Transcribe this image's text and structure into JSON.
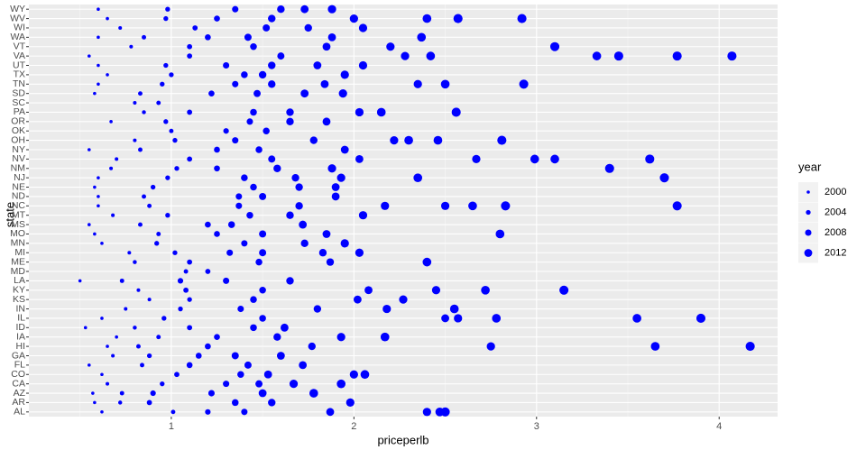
{
  "chart_data": {
    "type": "scatter",
    "x_label": "priceperlb",
    "y_label": "state",
    "categories": [
      "AL",
      "AR",
      "AZ",
      "CA",
      "CO",
      "FL",
      "GA",
      "HI",
      "IA",
      "ID",
      "IL",
      "IN",
      "KS",
      "KY",
      "LA",
      "MD",
      "ME",
      "MI",
      "MN",
      "MO",
      "MS",
      "MT",
      "NC",
      "ND",
      "NE",
      "NJ",
      "NM",
      "NV",
      "NY",
      "OH",
      "OK",
      "OR",
      "PA",
      "SC",
      "SD",
      "TN",
      "TX",
      "UT",
      "VA",
      "VT",
      "WA",
      "WI",
      "WV",
      "WY"
    ],
    "points": [
      [
        [
          0.62,
          2000
        ],
        [
          1.01,
          2003
        ],
        [
          1.2,
          2006
        ],
        [
          1.4,
          2008
        ],
        [
          1.87,
          2012
        ],
        [
          2.4,
          2013
        ],
        [
          2.47,
          2014
        ],
        [
          2.5,
          2015
        ]
      ],
      [
        [
          0.58,
          2000
        ],
        [
          0.72,
          2002
        ],
        [
          0.88,
          2005
        ],
        [
          1.35,
          2009
        ],
        [
          1.55,
          2011
        ],
        [
          1.98,
          2013
        ]
      ],
      [
        [
          0.57,
          2000
        ],
        [
          0.73,
          2003
        ],
        [
          0.9,
          2006
        ],
        [
          1.22,
          2008
        ],
        [
          1.5,
          2012
        ],
        [
          1.78,
          2014
        ]
      ],
      [
        [
          0.65,
          2001
        ],
        [
          0.95,
          2004
        ],
        [
          1.3,
          2008
        ],
        [
          1.48,
          2010
        ],
        [
          1.67,
          2013
        ],
        [
          1.93,
          2014
        ]
      ],
      [
        [
          0.62,
          2000
        ],
        [
          1.03,
          2005
        ],
        [
          1.38,
          2009
        ],
        [
          1.53,
          2012
        ],
        [
          2.0,
          2013
        ],
        [
          2.06,
          2014
        ]
      ],
      [
        [
          0.55,
          2000
        ],
        [
          0.84,
          2003
        ],
        [
          1.1,
          2007
        ],
        [
          1.42,
          2010
        ],
        [
          1.72,
          2012
        ]
      ],
      [
        [
          0.68,
          2001
        ],
        [
          0.88,
          2004
        ],
        [
          1.15,
          2007
        ],
        [
          1.35,
          2010
        ],
        [
          1.6,
          2012
        ]
      ],
      [
        [
          0.65,
          2000
        ],
        [
          0.82,
          2003
        ],
        [
          1.2,
          2007
        ],
        [
          1.77,
          2011
        ],
        [
          2.75,
          2013
        ],
        [
          3.65,
          2014
        ],
        [
          4.17,
          2015
        ]
      ],
      [
        [
          0.7,
          2000
        ],
        [
          0.93,
          2003
        ],
        [
          1.25,
          2007
        ],
        [
          1.58,
          2011
        ],
        [
          1.93,
          2013
        ],
        [
          2.17,
          2014
        ]
      ],
      [
        [
          0.53,
          2000
        ],
        [
          0.8,
          2002
        ],
        [
          1.1,
          2005
        ],
        [
          1.45,
          2009
        ],
        [
          1.62,
          2012
        ]
      ],
      [
        [
          0.62,
          2000
        ],
        [
          0.96,
          2004
        ],
        [
          1.5,
          2009
        ],
        [
          2.5,
          2012
        ],
        [
          2.57,
          2013
        ],
        [
          2.78,
          2014
        ],
        [
          3.55,
          2014
        ],
        [
          3.9,
          2015
        ]
      ],
      [
        [
          0.75,
          2001
        ],
        [
          1.05,
          2004
        ],
        [
          1.38,
          2008
        ],
        [
          1.8,
          2011
        ],
        [
          2.18,
          2013
        ],
        [
          2.55,
          2014
        ]
      ],
      [
        [
          0.88,
          2001
        ],
        [
          1.1,
          2004
        ],
        [
          1.45,
          2009
        ],
        [
          2.02,
          2012
        ],
        [
          2.27,
          2013
        ]
      ],
      [
        [
          0.82,
          2001
        ],
        [
          1.08,
          2005
        ],
        [
          1.5,
          2009
        ],
        [
          2.08,
          2012
        ],
        [
          2.45,
          2013
        ],
        [
          2.72,
          2014
        ],
        [
          3.15,
          2015
        ]
      ],
      [
        [
          0.5,
          2000
        ],
        [
          0.73,
          2003
        ],
        [
          1.05,
          2006
        ],
        [
          1.3,
          2008
        ],
        [
          1.65,
          2011
        ]
      ],
      [
        [
          1.08,
          2003
        ],
        [
          1.2,
          2005
        ]
      ],
      [
        [
          0.8,
          2002
        ],
        [
          1.1,
          2005
        ],
        [
          1.48,
          2009
        ],
        [
          1.87,
          2011
        ],
        [
          2.4,
          2014
        ]
      ],
      [
        [
          0.77,
          2001
        ],
        [
          1.02,
          2004
        ],
        [
          1.32,
          2008
        ],
        [
          1.5,
          2010
        ],
        [
          1.83,
          2011
        ],
        [
          2.03,
          2013
        ]
      ],
      [
        [
          0.62,
          2000
        ],
        [
          0.92,
          2004
        ],
        [
          1.4,
          2008
        ],
        [
          1.73,
          2011
        ],
        [
          1.95,
          2013
        ]
      ],
      [
        [
          0.58,
          2000
        ],
        [
          0.93,
          2003
        ],
        [
          1.25,
          2007
        ],
        [
          1.5,
          2010
        ],
        [
          1.85,
          2012
        ],
        [
          2.8,
          2014
        ]
      ],
      [
        [
          0.55,
          2000
        ],
        [
          0.83,
          2003
        ],
        [
          1.2,
          2007
        ],
        [
          1.33,
          2009
        ],
        [
          1.72,
          2012
        ]
      ],
      [
        [
          0.68,
          2001
        ],
        [
          0.98,
          2004
        ],
        [
          1.43,
          2009
        ],
        [
          1.65,
          2011
        ],
        [
          2.05,
          2013
        ]
      ],
      [
        [
          0.6,
          2000
        ],
        [
          0.88,
          2003
        ],
        [
          1.37,
          2008
        ],
        [
          1.7,
          2011
        ],
        [
          2.17,
          2013
        ],
        [
          2.5,
          2013
        ],
        [
          2.65,
          2014
        ],
        [
          2.83,
          2015
        ],
        [
          3.77,
          2015
        ]
      ],
      [
        [
          0.6,
          2000
        ],
        [
          0.85,
          2003
        ],
        [
          1.37,
          2008
        ],
        [
          1.5,
          2010
        ],
        [
          1.9,
          2012
        ]
      ],
      [
        [
          0.58,
          2000
        ],
        [
          0.9,
          2004
        ],
        [
          1.45,
          2009
        ],
        [
          1.7,
          2011
        ],
        [
          1.9,
          2012
        ]
      ],
      [
        [
          0.6,
          2000
        ],
        [
          0.98,
          2004
        ],
        [
          1.4,
          2009
        ],
        [
          1.68,
          2011
        ],
        [
          1.93,
          2013
        ],
        [
          2.35,
          2014
        ],
        [
          3.7,
          2015
        ]
      ],
      [
        [
          0.67,
          2001
        ],
        [
          1.03,
          2004
        ],
        [
          1.25,
          2007
        ],
        [
          1.58,
          2011
        ],
        [
          1.88,
          2013
        ],
        [
          3.4,
          2015
        ]
      ],
      [
        [
          0.7,
          2001
        ],
        [
          1.1,
          2005
        ],
        [
          1.55,
          2010
        ],
        [
          2.03,
          2012
        ],
        [
          2.67,
          2013
        ],
        [
          2.99,
          2014
        ],
        [
          3.1,
          2014
        ],
        [
          3.62,
          2015
        ]
      ],
      [
        [
          0.55,
          2000
        ],
        [
          0.83,
          2003
        ],
        [
          1.25,
          2007
        ],
        [
          1.48,
          2009
        ],
        [
          1.95,
          2012
        ]
      ],
      [
        [
          0.8,
          2001
        ],
        [
          1.02,
          2004
        ],
        [
          1.35,
          2008
        ],
        [
          1.78,
          2011
        ],
        [
          2.22,
          2013
        ],
        [
          2.3,
          2014
        ],
        [
          2.46,
          2014
        ],
        [
          2.81,
          2015
        ]
      ],
      [
        [
          1.0,
          2003
        ],
        [
          1.3,
          2006
        ],
        [
          1.52,
          2009
        ]
      ],
      [
        [
          0.67,
          2000
        ],
        [
          0.97,
          2004
        ],
        [
          1.43,
          2008
        ],
        [
          1.65,
          2011
        ],
        [
          1.85,
          2012
        ]
      ],
      [
        [
          0.85,
          2002
        ],
        [
          1.1,
          2005
        ],
        [
          1.45,
          2009
        ],
        [
          1.65,
          2011
        ],
        [
          2.03,
          2013
        ],
        [
          2.15,
          2014
        ],
        [
          2.56,
          2015
        ]
      ],
      [
        [
          0.8,
          2001
        ],
        [
          0.93,
          2003
        ]
      ],
      [
        [
          0.58,
          2000
        ],
        [
          0.83,
          2003
        ],
        [
          1.22,
          2007
        ],
        [
          1.47,
          2010
        ],
        [
          1.73,
          2012
        ],
        [
          1.94,
          2013
        ]
      ],
      [
        [
          0.6,
          2000
        ],
        [
          0.95,
          2004
        ],
        [
          1.35,
          2008
        ],
        [
          1.55,
          2011
        ],
        [
          1.84,
          2012
        ],
        [
          2.35,
          2013
        ],
        [
          2.5,
          2014
        ],
        [
          2.93,
          2015
        ]
      ],
      [
        [
          0.65,
          2000
        ],
        [
          1.0,
          2004
        ],
        [
          1.4,
          2009
        ],
        [
          1.5,
          2011
        ],
        [
          1.95,
          2013
        ]
      ],
      [
        [
          0.6,
          2000
        ],
        [
          0.97,
          2004
        ],
        [
          1.3,
          2008
        ],
        [
          1.55,
          2011
        ],
        [
          1.8,
          2012
        ],
        [
          2.05,
          2013
        ]
      ],
      [
        [
          0.55,
          2000
        ],
        [
          1.1,
          2005
        ],
        [
          1.6,
          2010
        ],
        [
          2.28,
          2013
        ],
        [
          2.42,
          2014
        ],
        [
          3.33,
          2014
        ],
        [
          3.45,
          2015
        ],
        [
          3.77,
          2015
        ],
        [
          4.07,
          2015
        ]
      ],
      [
        [
          0.78,
          2001
        ],
        [
          1.1,
          2005
        ],
        [
          1.45,
          2009
        ],
        [
          1.85,
          2012
        ],
        [
          2.2,
          2013
        ],
        [
          3.1,
          2015
        ]
      ],
      [
        [
          0.6,
          2000
        ],
        [
          0.85,
          2003
        ],
        [
          1.2,
          2007
        ],
        [
          1.42,
          2010
        ],
        [
          1.88,
          2012
        ],
        [
          2.37,
          2014
        ]
      ],
      [
        [
          0.72,
          2001
        ],
        [
          1.13,
          2005
        ],
        [
          1.52,
          2010
        ],
        [
          1.75,
          2011
        ],
        [
          2.05,
          2013
        ]
      ],
      [
        [
          0.65,
          2000
        ],
        [
          0.97,
          2004
        ],
        [
          1.25,
          2007
        ],
        [
          1.55,
          2011
        ],
        [
          2.0,
          2013
        ],
        [
          2.4,
          2014
        ],
        [
          2.57,
          2015
        ],
        [
          2.92,
          2015
        ]
      ],
      [
        [
          0.6,
          2000
        ],
        [
          0.98,
          2004
        ],
        [
          1.35,
          2008
        ],
        [
          1.6,
          2011
        ],
        [
          1.73,
          2012
        ],
        [
          1.88,
          2013
        ]
      ]
    ],
    "color": "#0000ff",
    "xlim": [
      0.22,
      4.32
    ],
    "xticks": [
      1,
      2,
      3,
      4
    ],
    "legend": {
      "title": "year",
      "breaks": [
        2000,
        2004,
        2008,
        2012
      ]
    }
  }
}
